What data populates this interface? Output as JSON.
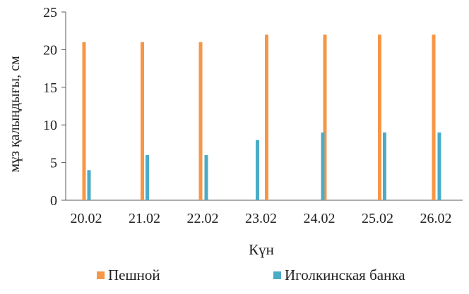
{
  "chart_data": {
    "type": "bar",
    "categories": [
      "20.02",
      "21.02",
      "22.02",
      "23.02",
      "24.02",
      "25.02",
      "26.02"
    ],
    "series": [
      {
        "name": "Пешной",
        "color": "#F79646",
        "values": [
          21,
          21,
          21,
          22,
          22,
          22,
          22
        ]
      },
      {
        "name": "Иголкинская банка",
        "color": "#4BACC6",
        "values": [
          4,
          6,
          6,
          8,
          9,
          9,
          9
        ]
      }
    ],
    "xlabel": "Күн",
    "ylabel": "мұз қалыңдығы, см",
    "ylim": [
      0,
      25
    ],
    "yticks": [
      0,
      5,
      10,
      15,
      20,
      25
    ],
    "grid": false,
    "legend_position": "bottom"
  }
}
